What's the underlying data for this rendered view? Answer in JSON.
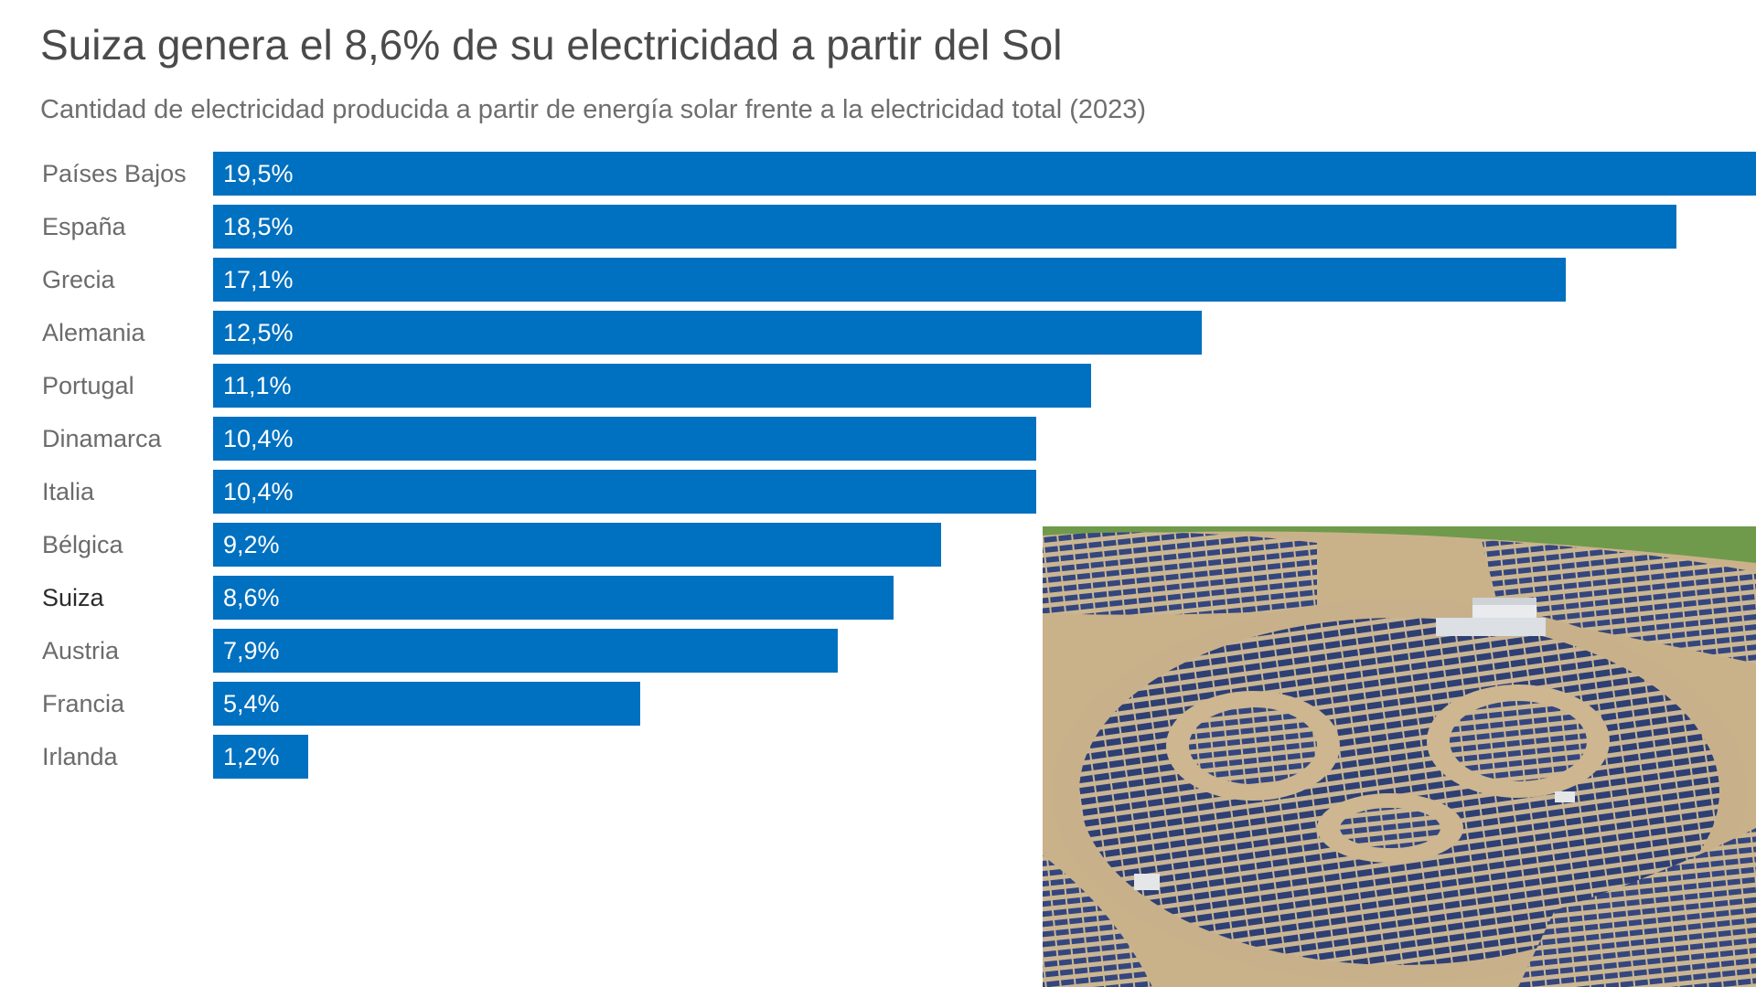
{
  "chart_data": {
    "type": "bar",
    "orientation": "horizontal",
    "title": "Suiza genera el 8,6% de su electricidad a partir del Sol",
    "subtitle": "Cantidad de electricidad producida a partir de energía solar frente a la electricidad total (2023)",
    "categories": [
      "Países Bajos",
      "España",
      "Grecia",
      "Alemania",
      "Portugal",
      "Dinamarca",
      "Italia",
      "Bélgica",
      "Suiza",
      "Austria",
      "Francia",
      "Irlanda"
    ],
    "values": [
      19.5,
      18.5,
      17.1,
      12.5,
      11.1,
      10.4,
      10.4,
      9.2,
      8.6,
      7.9,
      5.4,
      1.2
    ],
    "value_labels": [
      "19,5%",
      "18,5%",
      "17,1%",
      "12,5%",
      "11,1%",
      "10,4%",
      "10,4%",
      "9,2%",
      "8,6%",
      "7,9%",
      "5,4%",
      "1,2%"
    ],
    "highlight": "Suiza",
    "xlabel": "",
    "ylabel": "",
    "xlim": [
      0,
      19.5
    ],
    "grid": false,
    "bar_color": "#0070c0"
  },
  "photo": {
    "icon": "aerial-solar-farm-panda-photo"
  }
}
